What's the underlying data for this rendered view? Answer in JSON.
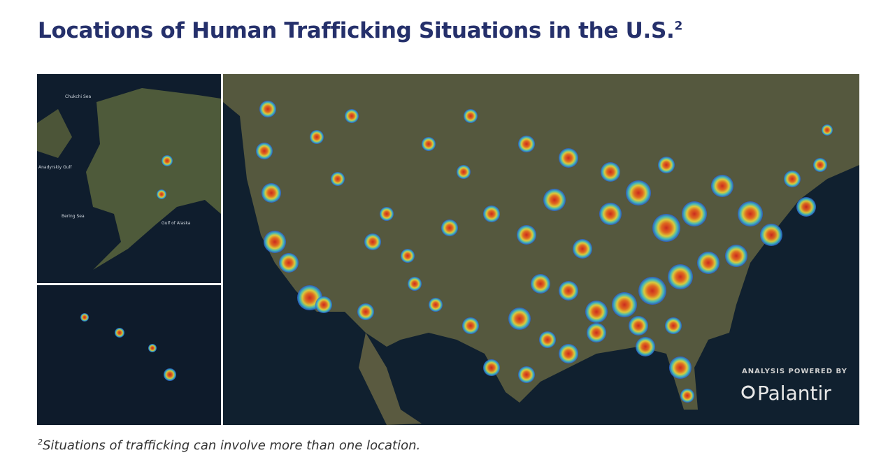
{
  "header": {
    "title": "Locations of Human Trafficking Situations in the U.S.",
    "title_note": "2"
  },
  "map": {
    "alaska_labels": [
      "Chukchi Sea",
      "Anadyrskiy Gulf",
      "Bering Sea",
      "Gulf of Alaska"
    ],
    "badge": {
      "caption": "ANALYSIS POWERED BY",
      "brand": "Palantir"
    }
  },
  "footnote": {
    "marker": "2",
    "text": "Situations of trafficking can involve more than one location."
  }
}
